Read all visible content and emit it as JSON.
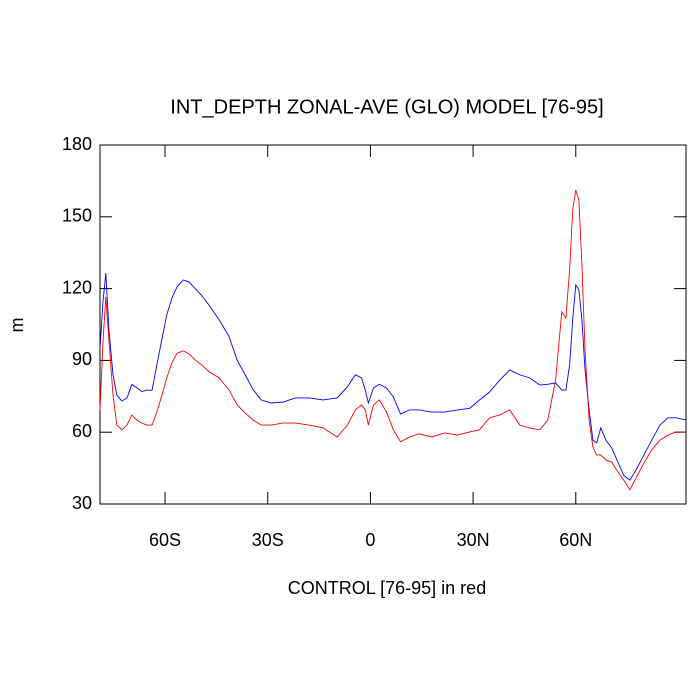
{
  "chart_data": {
    "type": "line",
    "title": "INT_DEPTH ZONAL-AVE (GLO) MODEL [76-95]",
    "x_label": "CONTROL [76-95] in red",
    "y_label": "m",
    "xlim": [
      -79,
      92.2
    ],
    "ylim": [
      30,
      180
    ],
    "xticks": [
      {
        "value": -60,
        "label": "60S"
      },
      {
        "value": -30,
        "label": "30S"
      },
      0,
      {
        "value": 30,
        "label": "30N"
      },
      {
        "value": 60,
        "label": "60N"
      }
    ],
    "yticks": [
      30,
      60,
      90,
      120,
      150,
      180
    ],
    "grid": false,
    "x": [
      -79.0,
      -78.1,
      -77.3,
      -76.4,
      -75.2,
      -74.1,
      -72.6,
      -71.1,
      -69.7,
      -68.2,
      -66.8,
      -65.3,
      -63.8,
      -62.4,
      -60.9,
      -59.5,
      -58.0,
      -56.5,
      -54.7,
      -53.0,
      -51.2,
      -49.2,
      -47.1,
      -44.2,
      -41.3,
      -38.9,
      -36.6,
      -34.2,
      -31.9,
      -29.0,
      -25.5,
      -21.9,
      -17.9,
      -13.8,
      -9.7,
      -6.7,
      -4.4,
      -2.6,
      -1.5,
      -0.6,
      0.9,
      2.6,
      4.7,
      6.7,
      8.8,
      11.4,
      14.3,
      17.9,
      21.7,
      25.5,
      29.0,
      31.9,
      34.8,
      37.8,
      40.7,
      43.6,
      46.5,
      49.5,
      51.8,
      54.1,
      55.9,
      57.1,
      58.2,
      59.1,
      60.0,
      60.9,
      61.8,
      62.7,
      63.9,
      65.0,
      66.1,
      67.3,
      68.8,
      70.5,
      72.3,
      74.0,
      75.8,
      77.6,
      79.9,
      82.2,
      84.6,
      86.9,
      89.3,
      92.2
    ],
    "series": [
      {
        "color": "#0000ff",
        "values": [
          95,
          115,
          126.5,
          103,
          84,
          75.5,
          73,
          74.3,
          80,
          78.5,
          77,
          77.6,
          77.5,
          88,
          99,
          109,
          116,
          120.7,
          123.6,
          122.8,
          120,
          117,
          113,
          107,
          100,
          90,
          84,
          77.6,
          73.5,
          72.2,
          72.6,
          74.3,
          74.3,
          73.5,
          74.3,
          79,
          84,
          82.7,
          77.6,
          72.2,
          78.5,
          80,
          78.5,
          74.7,
          67.6,
          69.3,
          69.3,
          68.4,
          68.4,
          69.3,
          70,
          73.5,
          76.8,
          81.8,
          86,
          84,
          82.7,
          79.7,
          80,
          80.6,
          77.6,
          77.6,
          88,
          107,
          121.5,
          119.4,
          107,
          86,
          69.3,
          56.7,
          55.5,
          61.8,
          56.7,
          53.4,
          47.5,
          42,
          40,
          44.2,
          50.5,
          56.7,
          63,
          66,
          66,
          65.1
        ]
      },
      {
        "color": "#ff0000",
        "values": [
          69.3,
          98.5,
          116.5,
          98.5,
          75.5,
          63,
          61,
          63,
          67.2,
          65,
          63.8,
          63,
          63,
          68.4,
          75.5,
          82.7,
          89,
          93,
          94,
          92.7,
          90.2,
          88,
          85.2,
          82.7,
          77.6,
          71.4,
          68,
          65,
          63,
          63,
          63.8,
          63.8,
          63,
          61.8,
          58,
          63,
          69.3,
          71.4,
          69.3,
          63,
          71.4,
          73.5,
          68.4,
          61,
          56,
          58,
          59.3,
          58,
          59.7,
          58.8,
          60.1,
          61,
          66,
          67.2,
          69.3,
          63,
          61.8,
          61,
          65,
          81.8,
          110.2,
          107.7,
          127.8,
          152.9,
          161.2,
          157,
          130,
          94.4,
          65,
          53.8,
          50.5,
          50.5,
          48.4,
          47.5,
          43.4,
          40,
          35.9,
          40.9,
          47.1,
          52.6,
          56.7,
          58.8,
          60.1,
          60.1
        ]
      }
    ]
  }
}
